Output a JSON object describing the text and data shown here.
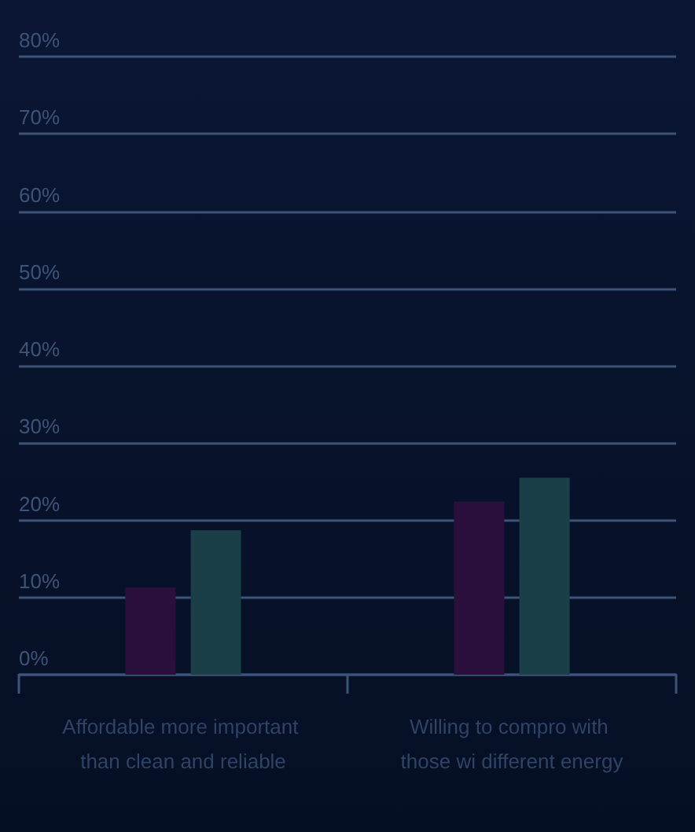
{
  "chart_data": {
    "type": "bar",
    "categories": [
      "Affordable more important than clean and reliable",
      "Willing to compro with those wi different energy"
    ],
    "series": [
      {
        "color": "#2a0f3c",
        "values": [
          11.3,
          22.4
        ]
      },
      {
        "color": "#1a3f48",
        "values": [
          18.7,
          25.5
        ]
      }
    ],
    "ylim": [
      0,
      80
    ],
    "yticks": [
      {
        "value": 0,
        "label": "0%"
      },
      {
        "value": 10,
        "label": "10%"
      },
      {
        "value": 20,
        "label": "20%"
      },
      {
        "value": 30,
        "label": "30%"
      },
      {
        "value": 40,
        "label": "40%"
      },
      {
        "value": 50,
        "label": "50%"
      },
      {
        "value": 60,
        "label": "60%"
      },
      {
        "value": 70,
        "label": "70%"
      },
      {
        "value": 80,
        "label": "80%"
      }
    ],
    "grid": "y"
  }
}
